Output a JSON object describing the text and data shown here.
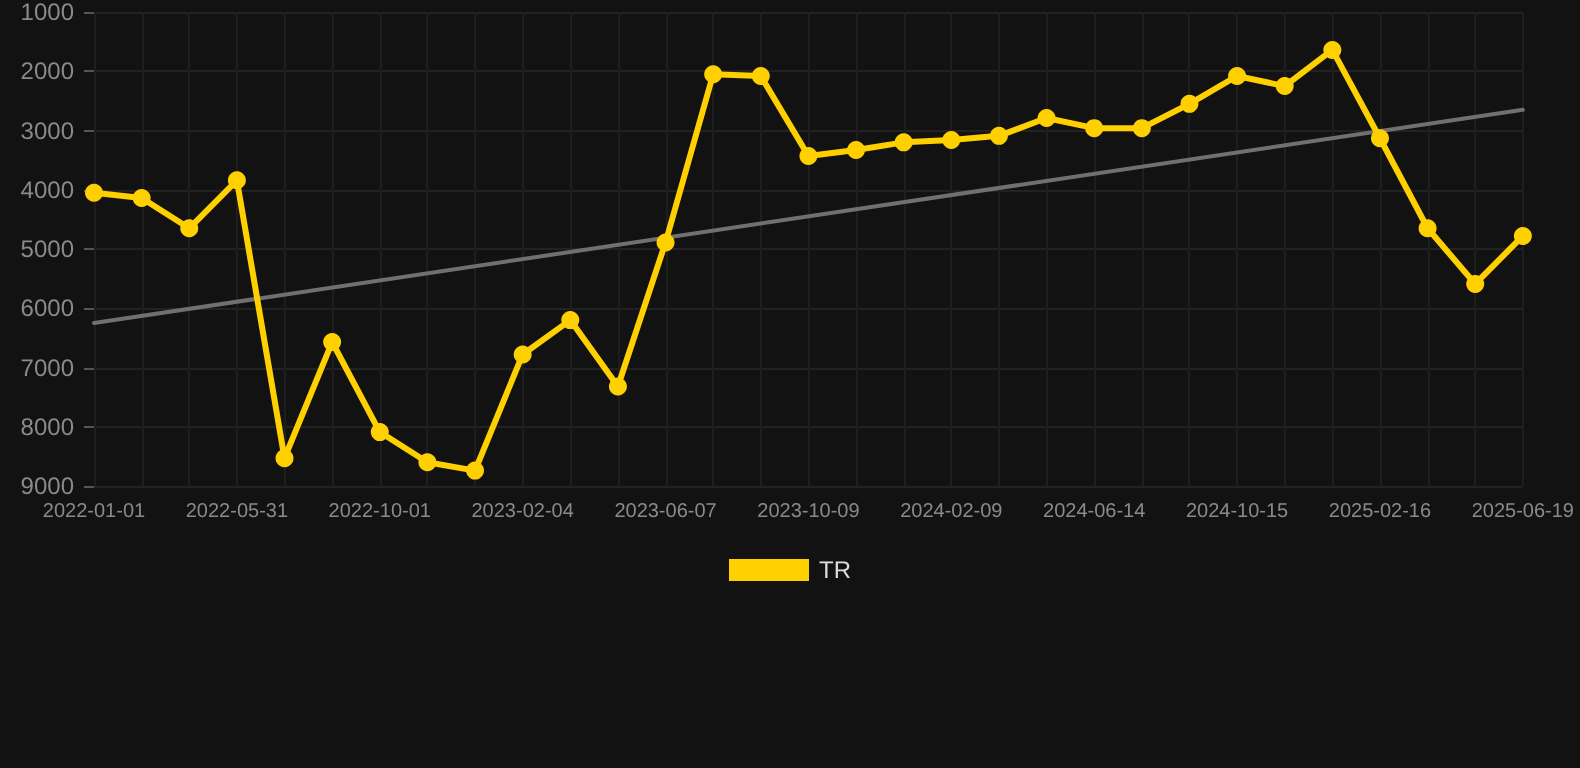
{
  "chart_data": {
    "type": "line",
    "categories": [
      "2022-01-01",
      null,
      null,
      "2022-05-31",
      null,
      null,
      "2022-10-01",
      null,
      null,
      "2023-02-04",
      null,
      null,
      "2023-06-07",
      null,
      null,
      "2023-10-09",
      null,
      null,
      "2024-02-09",
      null,
      null,
      "2024-06-14",
      null,
      null,
      "2024-10-15",
      null,
      null,
      "2025-02-16",
      null,
      null,
      "2025-06-19"
    ],
    "series": [
      {
        "name": "TR",
        "color": "#ffd000",
        "values": [
          4050,
          4140,
          4650,
          3840,
          8530,
          6570,
          8090,
          8600,
          8740,
          6780,
          6200,
          7320,
          4890,
          2050,
          2080,
          3430,
          3330,
          3200,
          3160,
          3090,
          2790,
          2960,
          2960,
          2550,
          2080,
          2250,
          1640,
          3130,
          4650,
          5590,
          4780
        ]
      },
      {
        "type": "line",
        "color": "#707070",
        "values": [
          6250,
          null,
          null,
          null,
          null,
          null,
          null,
          null,
          null,
          null,
          null,
          null,
          null,
          null,
          null,
          null,
          null,
          null,
          null,
          null,
          null,
          null,
          null,
          null,
          null,
          null,
          null,
          null,
          null,
          null,
          2650
        ],
        "marker": "none"
      }
    ],
    "ylim": [
      9000,
      1000
    ],
    "yticks": [
      1000,
      2000,
      3000,
      4000,
      5000,
      6000,
      7000,
      8000,
      9000
    ],
    "grid": true,
    "legend": "bottom",
    "marker": "circle"
  }
}
